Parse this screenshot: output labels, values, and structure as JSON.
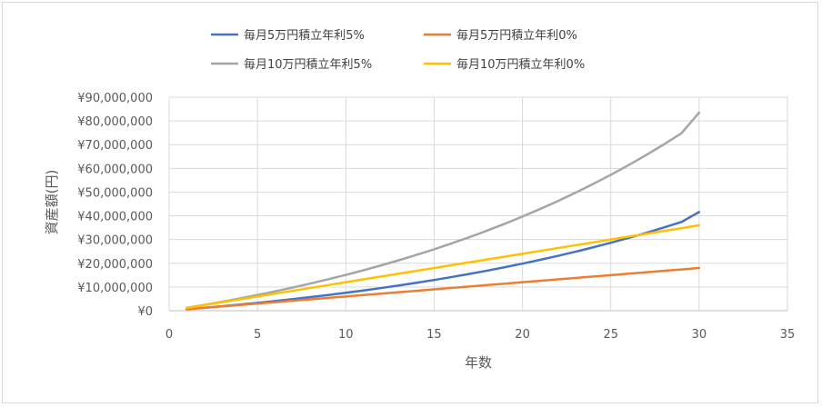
{
  "chart_data": {
    "type": "line",
    "title": "",
    "xlabel": "年数",
    "ylabel": "資産額(円)",
    "xlim": [
      0,
      35
    ],
    "ylim": [
      0,
      90000000
    ],
    "x_ticks": [
      0,
      5,
      10,
      15,
      20,
      25,
      30,
      35
    ],
    "y_ticks": [
      0,
      10000000,
      20000000,
      30000000,
      40000000,
      50000000,
      60000000,
      70000000,
      80000000,
      90000000
    ],
    "y_tick_labels": [
      "¥0",
      "¥10,000,000",
      "¥20,000,000",
      "¥30,000,000",
      "¥40,000,000",
      "¥50,000,000",
      "¥60,000,000",
      "¥70,000,000",
      "¥80,000,000",
      "¥90,000,000"
    ],
    "grid": true,
    "legend_position": "top",
    "x": [
      1,
      2,
      3,
      4,
      5,
      6,
      7,
      8,
      9,
      10,
      11,
      12,
      13,
      14,
      15,
      16,
      17,
      18,
      19,
      20,
      21,
      22,
      23,
      24,
      25,
      26,
      27,
      28,
      29,
      30
    ],
    "series": [
      {
        "name": "毎月5万円積立年利5%",
        "color": "#4472c4",
        "values": [
          600000,
          1230000,
          1892000,
          2586000,
          3316000,
          4082000,
          4886000,
          5730000,
          6617000,
          7548000,
          8525000,
          9551000,
          10629000,
          11760000,
          12948000,
          14196000,
          15506000,
          16881000,
          18325000,
          19842000,
          21434000,
          23106000,
          24861000,
          26704000,
          28639000,
          30671000,
          32805000,
          35045000,
          37397000,
          41600000
        ]
      },
      {
        "name": "毎月5万円積立年利0%",
        "color": "#ed7d31",
        "values": [
          600000,
          1200000,
          1800000,
          2400000,
          3000000,
          3600000,
          4200000,
          4800000,
          5400000,
          6000000,
          6600000,
          7200000,
          7800000,
          8400000,
          9000000,
          9600000,
          10200000,
          10800000,
          11400000,
          12000000,
          12600000,
          13200000,
          13800000,
          14400000,
          15000000,
          15600000,
          16200000,
          16800000,
          17400000,
          18000000
        ]
      },
      {
        "name": "毎月10万円積立年利5%",
        "color": "#a5a5a5",
        "values": [
          1200000,
          2460000,
          3783000,
          5172000,
          6631000,
          8163000,
          9771000,
          11460000,
          13233000,
          15095000,
          17050000,
          19102000,
          21257000,
          23520000,
          25896000,
          28391000,
          31011000,
          33761000,
          36649000,
          39682000,
          42866000,
          46209000,
          49720000,
          53406000,
          57276000,
          61340000,
          65607000,
          70087000,
          74792000,
          83500000
        ]
      },
      {
        "name": "毎月10万円積立年利0%",
        "color": "#ffc000",
        "values": [
          1200000,
          2400000,
          3600000,
          4800000,
          6000000,
          7200000,
          8400000,
          9600000,
          10800000,
          12000000,
          13200000,
          14400000,
          15600000,
          16800000,
          18000000,
          19200000,
          20400000,
          21600000,
          22800000,
          24000000,
          25200000,
          26400000,
          27600000,
          28800000,
          30000000,
          31200000,
          32400000,
          33600000,
          34800000,
          36000000
        ]
      }
    ]
  }
}
